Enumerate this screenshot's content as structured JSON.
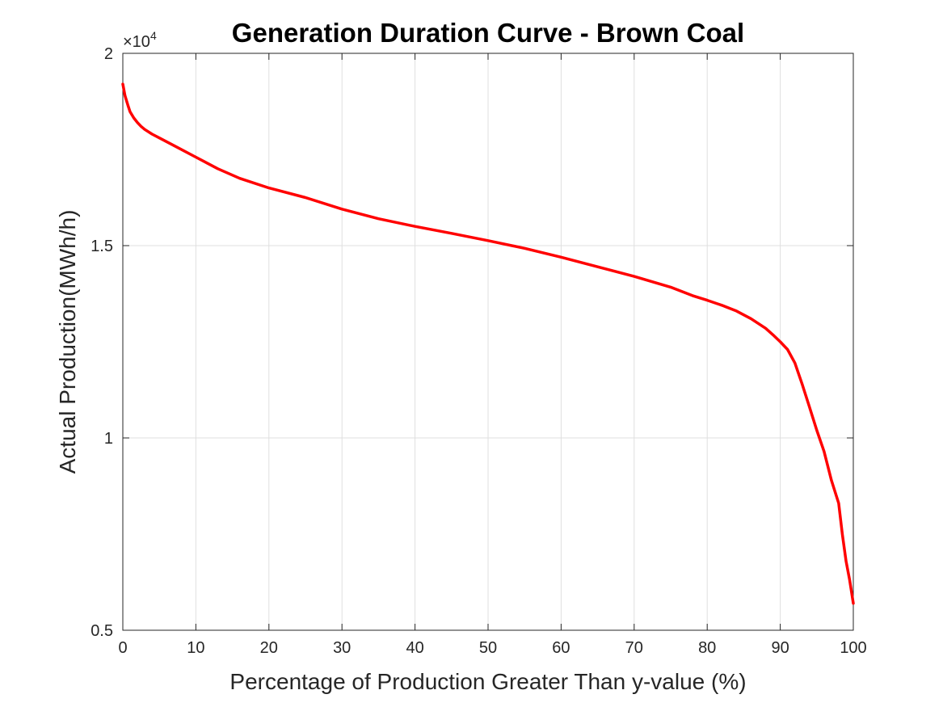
{
  "chart_data": {
    "type": "line",
    "title": "Generation Duration Curve - Brown Coal",
    "xlabel": "Percentage of Production Greater Than y-value (%)",
    "ylabel": "Actual Production(MWh/h)",
    "xlim": [
      0,
      100
    ],
    "ylim": [
      5000,
      20000
    ],
    "xticks": [
      0,
      10,
      20,
      30,
      40,
      50,
      60,
      70,
      80,
      90,
      100
    ],
    "xtick_labels": [
      "0",
      "10",
      "20",
      "30",
      "40",
      "50",
      "60",
      "70",
      "80",
      "90",
      "100"
    ],
    "yticks": [
      5000,
      10000,
      15000,
      20000
    ],
    "ytick_labels": [
      "0.5",
      "1",
      "1.5",
      "2"
    ],
    "y_exponent_label": "×10",
    "y_exponent_power": "4",
    "grid": true,
    "series": [
      {
        "color": "#ff0000",
        "x": [
          0,
          0.3,
          0.7,
          1,
          1.5,
          2,
          2.5,
          3,
          4,
          5,
          7,
          10,
          13,
          16,
          20,
          25,
          30,
          35,
          40,
          45,
          50,
          55,
          60,
          65,
          70,
          75,
          78,
          80,
          82,
          84,
          86,
          88,
          89,
          90,
          91,
          92,
          93,
          94,
          95,
          96,
          97,
          98,
          98.5,
          99,
          99.5,
          100
        ],
        "y": [
          19200,
          18900,
          18650,
          18480,
          18320,
          18200,
          18100,
          18020,
          17900,
          17800,
          17600,
          17300,
          17000,
          16750,
          16500,
          16250,
          15950,
          15700,
          15500,
          15320,
          15130,
          14930,
          14700,
          14450,
          14200,
          13920,
          13700,
          13580,
          13450,
          13300,
          13100,
          12850,
          12680,
          12500,
          12300,
          11950,
          11400,
          10800,
          10200,
          9650,
          8900,
          8300,
          7500,
          6800,
          6300,
          5700
        ]
      }
    ]
  }
}
